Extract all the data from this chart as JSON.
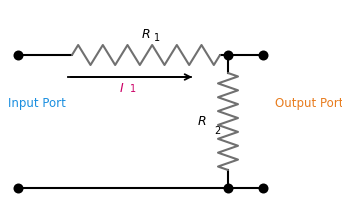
{
  "bg_color": "#ffffff",
  "line_color": "#000000",
  "r1_label": "R",
  "r1_sub": "1",
  "r2_label": "R",
  "r2_sub": "2",
  "i1_label": "I",
  "i1_sub": "1",
  "input_port_label": "Input Port",
  "output_port_label": "Output Port",
  "input_port_color": "#1B8FE0",
  "output_port_color": "#E87C1E",
  "i1_color": "#CC0066",
  "r1_color": "#707070",
  "r2_color": "#707070",
  "dot_color": "#000000",
  "figsize": [
    3.42,
    2.08
  ],
  "dpi": 100,
  "xlim": [
    0,
    342
  ],
  "ylim": [
    0,
    208
  ]
}
